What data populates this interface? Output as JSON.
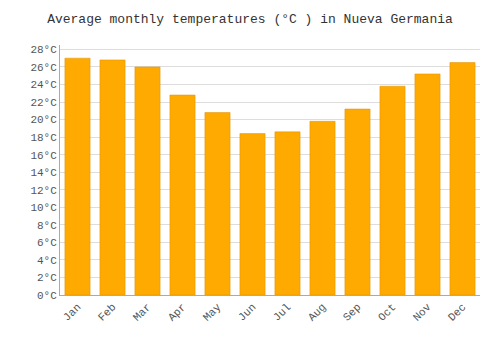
{
  "chart_data": {
    "type": "bar",
    "title": "Average monthly temperatures (°C ) in Nueva Germania",
    "categories": [
      "Jan",
      "Feb",
      "Mar",
      "Apr",
      "May",
      "Jun",
      "Jul",
      "Aug",
      "Sep",
      "Oct",
      "Nov",
      "Dec"
    ],
    "values": [
      27.0,
      26.8,
      26.0,
      22.8,
      20.8,
      18.4,
      18.6,
      19.8,
      21.2,
      23.8,
      25.2,
      26.5
    ],
    "color": "#FFAA00",
    "ylim": [
      0,
      28.5
    ],
    "yticks": [
      {
        "value": 0,
        "label": "0°C"
      },
      {
        "value": 2,
        "label": "2°C"
      },
      {
        "value": 4,
        "label": "4°C"
      },
      {
        "value": 6,
        "label": "6°C"
      },
      {
        "value": 8,
        "label": "8°C"
      },
      {
        "value": 10,
        "label": "10°C"
      },
      {
        "value": 12,
        "label": "12°C"
      },
      {
        "value": 14,
        "label": "14°C"
      },
      {
        "value": 16,
        "label": "16°C"
      },
      {
        "value": 18,
        "label": "18°C"
      },
      {
        "value": 20,
        "label": "20°C"
      },
      {
        "value": 22,
        "label": "22°C"
      },
      {
        "value": 24,
        "label": "24°C"
      },
      {
        "value": 26,
        "label": "26°C"
      },
      {
        "value": 28,
        "label": "28°C"
      }
    ],
    "grid": true
  }
}
